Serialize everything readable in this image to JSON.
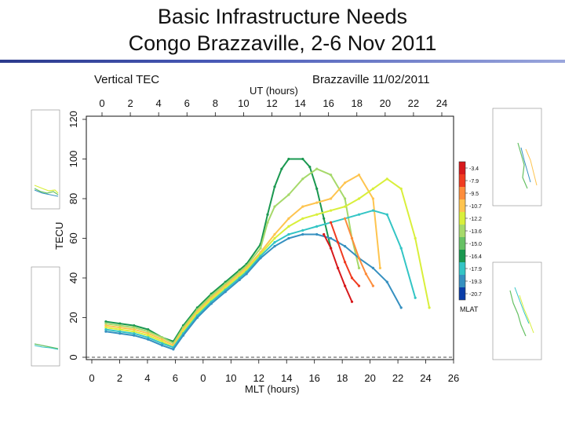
{
  "slide": {
    "title_line1": "Basic Infrastructure Needs",
    "title_line2": "Congo Brazzaville, 2-6 Nov 2011"
  },
  "chart_data": {
    "type": "line",
    "title_left": "Vertical TEC",
    "title_right": "Brazzaville 11/02/2011",
    "top_axis_label": "UT (hours)",
    "xlabel": "MLT (hours)",
    "ylabel": "TECU",
    "x_ticks": [
      "0",
      "2",
      "4",
      "6",
      "8",
      "10",
      "12",
      "14",
      "16",
      "18",
      "20",
      "22",
      "24"
    ],
    "x_bottom_ticks": [
      "0",
      "2",
      "4",
      "6",
      "0",
      "10",
      "12",
      "14",
      "16",
      "18",
      "20",
      "22",
      "24",
      "26"
    ],
    "y_ticks": [
      "0",
      "20",
      "40",
      "60",
      "80",
      "100",
      "120"
    ],
    "xlim": [
      0,
      26
    ],
    "ylim": [
      0,
      125
    ],
    "colorbar": {
      "label": "MLAT",
      "ticks": [
        "-3.4",
        "-7.9",
        "-9.5",
        "-10.7",
        "-12.2",
        "-13.6",
        "-15.0",
        "-16.4",
        "-17.9",
        "-19.3",
        "-20.7"
      ],
      "colors": [
        "#d7191c",
        "#f03b20",
        "#fd8d3c",
        "#fec44f",
        "#d9ef3b",
        "#a6d96a",
        "#66c164",
        "#1a9850",
        "#33c5c5",
        "#3690c0",
        "#0b3ea8"
      ]
    },
    "series": [
      {
        "color": "#1a9850",
        "x": [
          1.0,
          2.0,
          3.0,
          4.0,
          5.0,
          5.8,
          6.5,
          7.5,
          8.5,
          9.5,
          10.5,
          11.0,
          12.0,
          12.5,
          13.0,
          13.5,
          14.0,
          15.0,
          15.5,
          16.0,
          16.5,
          17.0
        ],
        "y": [
          18,
          17,
          16,
          14,
          10,
          8,
          16,
          25,
          32,
          38,
          44,
          47,
          57,
          72,
          86,
          95,
          100,
          100,
          96,
          85,
          70,
          55
        ]
      },
      {
        "color": "#a6d96a",
        "x": [
          1.0,
          2.0,
          3.0,
          4.0,
          5.0,
          5.8,
          6.5,
          7.5,
          8.5,
          9.5,
          10.5,
          11.0,
          12.0,
          12.5,
          13.0,
          14.0,
          15.0,
          16.0,
          17.0,
          18.0,
          18.5,
          19.0
        ],
        "y": [
          17,
          16,
          15,
          13,
          10,
          7,
          15,
          24,
          31,
          37,
          43,
          46,
          55,
          68,
          76,
          82,
          90,
          95,
          92,
          80,
          60,
          45
        ]
      },
      {
        "color": "#fec44f",
        "x": [
          1.0,
          2.0,
          3.0,
          4.0,
          5.0,
          5.8,
          6.5,
          7.5,
          8.5,
          9.5,
          10.5,
          11.0,
          12.0,
          13.0,
          14.0,
          15.0,
          16.0,
          17.0,
          18.0,
          19.0,
          20.0,
          20.5
        ],
        "y": [
          16,
          15,
          14,
          12,
          9,
          6,
          14,
          23,
          30,
          36,
          42,
          45,
          53,
          62,
          70,
          76,
          78,
          80,
          88,
          92,
          80,
          45
        ]
      },
      {
        "color": "#d9ef3b",
        "x": [
          1.0,
          2.0,
          3.0,
          4.0,
          5.0,
          5.8,
          6.5,
          7.5,
          8.5,
          9.5,
          10.5,
          11.0,
          12.0,
          13.0,
          14.0,
          15.0,
          16.0,
          17.0,
          18.0,
          19.0,
          20.0,
          21.0,
          22.0,
          23.0,
          24.0
        ],
        "y": [
          15,
          14,
          13,
          11,
          8,
          5,
          13,
          22,
          29,
          35,
          41,
          44,
          52,
          60,
          66,
          70,
          72,
          74,
          76,
          80,
          85,
          90,
          85,
          60,
          25
        ]
      },
      {
        "color": "#33c5c5",
        "x": [
          1.0,
          2.0,
          3.0,
          4.0,
          5.0,
          5.8,
          6.5,
          7.5,
          8.5,
          9.5,
          10.5,
          11.0,
          12.0,
          13.0,
          14.0,
          15.0,
          16.0,
          17.0,
          18.0,
          19.0,
          20.0,
          21.0,
          22.0,
          23.0
        ],
        "y": [
          14,
          13,
          12,
          10,
          7,
          5,
          12,
          21,
          28,
          34,
          40,
          43,
          51,
          58,
          62,
          64,
          66,
          68,
          70,
          72,
          74,
          72,
          55,
          30
        ]
      },
      {
        "color": "#3690c0",
        "x": [
          1.0,
          2.0,
          3.0,
          4.0,
          5.0,
          5.8,
          6.5,
          7.5,
          8.5,
          9.5,
          10.5,
          11.0,
          12.0,
          13.0,
          14.0,
          15.0,
          16.0,
          17.0,
          18.0,
          19.0,
          20.0,
          21.0,
          22.0
        ],
        "y": [
          13,
          12,
          11,
          9,
          6,
          4,
          11,
          20,
          27,
          33,
          39,
          42,
          50,
          56,
          60,
          62,
          62,
          60,
          56,
          50,
          45,
          38,
          25
        ]
      },
      {
        "color": "#d7191c",
        "x": [
          16.5,
          17.0,
          17.5,
          18.0,
          18.5
        ],
        "y": [
          62,
          55,
          45,
          36,
          28
        ]
      },
      {
        "color": "#f03b20",
        "x": [
          17.0,
          17.5,
          18.0,
          18.5,
          19.0
        ],
        "y": [
          68,
          58,
          48,
          40,
          36
        ]
      },
      {
        "color": "#fd8d3c",
        "x": [
          18.0,
          18.5,
          19.0,
          19.5,
          20.0
        ],
        "y": [
          70,
          60,
          50,
          42,
          36
        ]
      }
    ]
  }
}
